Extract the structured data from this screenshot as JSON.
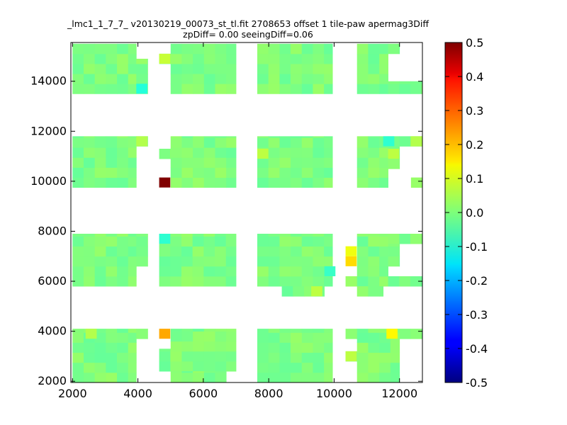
{
  "chart_data": {
    "type": "heatmap",
    "title": "_lmc1_1_7_7_ v20130219_00073_st_tl.fit 2708653 offset 1 tile-paw apermag3Diff",
    "subtitle": "zpDiff= 0.00 seeingDiff=0.06",
    "xlabel": "",
    "ylabel": "",
    "xlim": [
      1950,
      12700
    ],
    "ylim": [
      1950,
      15550
    ],
    "x_ticks": [
      2000,
      4000,
      6000,
      8000,
      10000,
      12000
    ],
    "y_ticks": [
      2000,
      4000,
      6000,
      8000,
      10000,
      12000,
      14000
    ],
    "colorbar": {
      "colormap": "jet",
      "vmin": -0.5,
      "vmax": 0.5,
      "ticks": [
        -0.5,
        -0.4,
        -0.3,
        -0.2,
        -0.1,
        0.0,
        0.1,
        0.2,
        0.3,
        0.4,
        0.5
      ],
      "tick_labels": [
        "-0.5",
        "-0.4",
        "-0.3",
        "-0.2",
        "-0.1",
        "0.0",
        "0.1",
        "0.2",
        "0.3",
        "0.4",
        "0.5"
      ]
    },
    "cell_size": [
      340,
      400
    ],
    "background_value": 0.0,
    "regions": [
      {
        "x0": 2000,
        "x1": 3950,
        "y0": 13500,
        "y1": 15500
      },
      {
        "x0": 3950,
        "x1": 4300,
        "y0": 13500,
        "y1": 14900
      },
      {
        "x0": 4650,
        "x1": 5000,
        "y0": 14700,
        "y1": 15100
      },
      {
        "x0": 5000,
        "x1": 7000,
        "y0": 13500,
        "y1": 15500
      },
      {
        "x0": 7650,
        "x1": 9950,
        "y0": 13500,
        "y1": 15500
      },
      {
        "x0": 10700,
        "x1": 11650,
        "y0": 13500,
        "y1": 15500
      },
      {
        "x0": 11650,
        "x1": 12000,
        "y0": 15100,
        "y1": 15500
      },
      {
        "x0": 11650,
        "x1": 12700,
        "y0": 13500,
        "y1": 14000
      },
      {
        "x0": 2000,
        "x1": 3950,
        "y0": 9750,
        "y1": 11800
      },
      {
        "x0": 3950,
        "x1": 4300,
        "y0": 11400,
        "y1": 11800
      },
      {
        "x0": 4650,
        "x1": 5000,
        "y0": 10900,
        "y1": 11300
      },
      {
        "x0": 5000,
        "x1": 7000,
        "y0": 9750,
        "y1": 11800
      },
      {
        "x0": 7650,
        "x1": 9950,
        "y0": 9750,
        "y1": 11800
      },
      {
        "x0": 10700,
        "x1": 11650,
        "y0": 9750,
        "y1": 11800
      },
      {
        "x0": 11650,
        "x1": 12700,
        "y0": 11400,
        "y1": 11800
      },
      {
        "x0": 11650,
        "x1": 12000,
        "y0": 10500,
        "y1": 11400
      },
      {
        "x0": 12350,
        "x1": 12700,
        "y0": 9750,
        "y1": 10150
      },
      {
        "x0": 2000,
        "x1": 3950,
        "y0": 5800,
        "y1": 7900
      },
      {
        "x0": 3950,
        "x1": 4300,
        "y0": 6600,
        "y1": 7900
      },
      {
        "x0": 4650,
        "x1": 7000,
        "y0": 5800,
        "y1": 7900
      },
      {
        "x0": 7650,
        "x1": 9950,
        "y0": 5800,
        "y1": 7900
      },
      {
        "x0": 8400,
        "x1": 9700,
        "y0": 5400,
        "y1": 5800
      },
      {
        "x0": 10700,
        "x1": 11650,
        "y0": 5800,
        "y1": 7900
      },
      {
        "x0": 10700,
        "x1": 11500,
        "y0": 5400,
        "y1": 5800
      },
      {
        "x0": 11650,
        "x1": 12700,
        "y0": 7500,
        "y1": 7900
      },
      {
        "x0": 11650,
        "x1": 12000,
        "y0": 6600,
        "y1": 7500
      },
      {
        "x0": 11650,
        "x1": 12700,
        "y0": 5800,
        "y1": 6200
      },
      {
        "x0": 10350,
        "x1": 10700,
        "y0": 5800,
        "y1": 6200
      },
      {
        "x0": 2000,
        "x1": 3950,
        "y0": 1950,
        "y1": 4100
      },
      {
        "x0": 3950,
        "x1": 4300,
        "y0": 3700,
        "y1": 4100
      },
      {
        "x0": 4650,
        "x1": 5000,
        "y0": 2400,
        "y1": 3300
      },
      {
        "x0": 5000,
        "x1": 7000,
        "y0": 2400,
        "y1": 4100
      },
      {
        "x0": 5000,
        "x1": 6700,
        "y0": 1950,
        "y1": 2400
      },
      {
        "x0": 7650,
        "x1": 9950,
        "y0": 1950,
        "y1": 4100
      },
      {
        "x0": 10350,
        "x1": 10700,
        "y0": 3700,
        "y1": 4100
      },
      {
        "x0": 10350,
        "x1": 10700,
        "y0": 2800,
        "y1": 3200
      },
      {
        "x0": 10700,
        "x1": 12000,
        "y0": 1950,
        "y1": 4100
      },
      {
        "x0": 12000,
        "x1": 12700,
        "y0": 3700,
        "y1": 4100
      }
    ],
    "highlights": [
      {
        "x": 4650,
        "y": 9750,
        "value": 0.5
      },
      {
        "x": 4650,
        "y": 3700,
        "value": 0.21
      },
      {
        "x": 10350,
        "y": 6600,
        "value": 0.16
      },
      {
        "x": 10350,
        "y": 7000,
        "value": 0.11
      },
      {
        "x": 11600,
        "y": 3700,
        "value": 0.13
      },
      {
        "x": 4650,
        "y": 14700,
        "value": 0.07
      },
      {
        "x": 3950,
        "y": 13500,
        "value": -0.09
      },
      {
        "x": 4650,
        "y": 7500,
        "value": -0.08
      },
      {
        "x": 11500,
        "y": 11400,
        "value": -0.08
      },
      {
        "x": 9700,
        "y": 6200,
        "value": -0.07
      },
      {
        "x": 7650,
        "y": 10900,
        "value": 0.06
      },
      {
        "x": 3950,
        "y": 11400,
        "value": 0.05
      },
      {
        "x": 12350,
        "y": 11400,
        "value": 0.05
      },
      {
        "x": 11650,
        "y": 10900,
        "value": 0.06
      },
      {
        "x": 9300,
        "y": 5400,
        "value": 0.06
      },
      {
        "x": 10350,
        "y": 2800,
        "value": 0.06
      },
      {
        "x": 2400,
        "y": 3700,
        "value": 0.05
      }
    ]
  }
}
